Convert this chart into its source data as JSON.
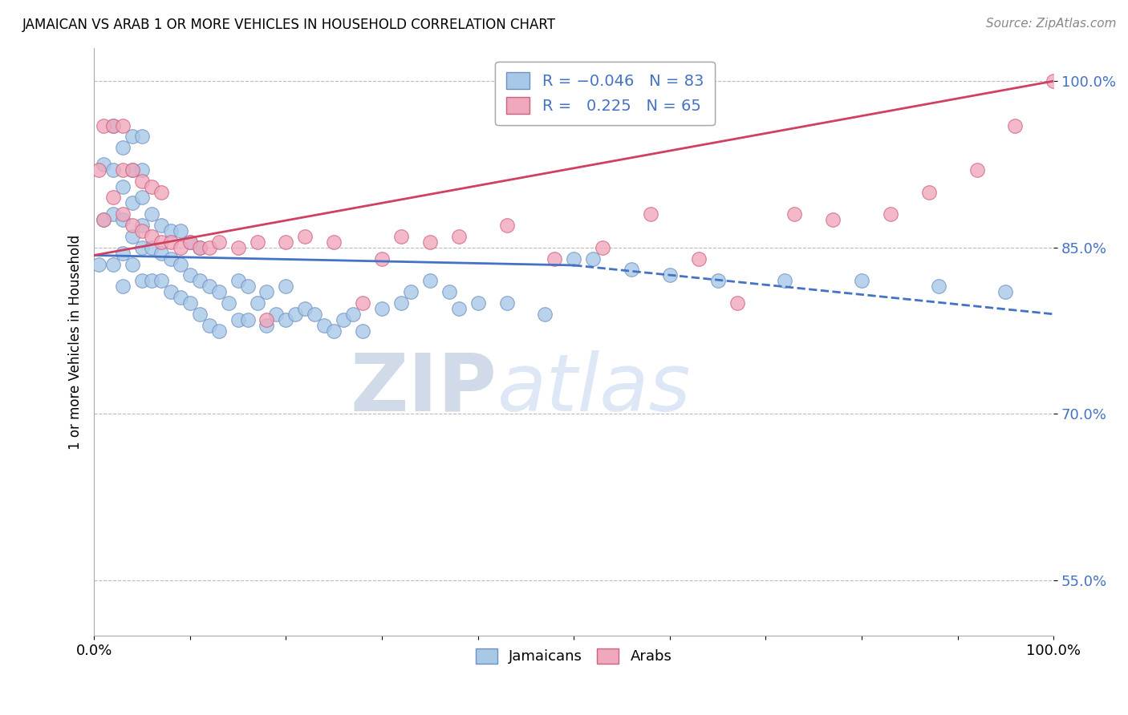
{
  "title": "JAMAICAN VS ARAB 1 OR MORE VEHICLES IN HOUSEHOLD CORRELATION CHART",
  "source": "Source: ZipAtlas.com",
  "ylabel": "1 or more Vehicles in Household",
  "xlim": [
    0.0,
    1.0
  ],
  "ylim": [
    0.5,
    1.03
  ],
  "yticks": [
    0.55,
    0.7,
    0.85,
    1.0
  ],
  "ytick_labels": [
    "55.0%",
    "70.0%",
    "85.0%",
    "100.0%"
  ],
  "xtick_labels": [
    "0.0%",
    "",
    "",
    "",
    "",
    "",
    "",
    "",
    "",
    "",
    "100.0%"
  ],
  "jamaican_color": "#A8C8E8",
  "arab_color": "#F0A8BC",
  "jamaican_color_edge": "#7090C0",
  "arab_color_edge": "#D06080",
  "trend_jamaican_color": "#4472C4",
  "trend_arab_color": "#D04060",
  "watermark_zip": "ZIP",
  "watermark_atlas": "atlas",
  "jamaican_x": [
    0.005,
    0.01,
    0.01,
    0.02,
    0.02,
    0.02,
    0.02,
    0.03,
    0.03,
    0.03,
    0.03,
    0.03,
    0.04,
    0.04,
    0.04,
    0.04,
    0.04,
    0.05,
    0.05,
    0.05,
    0.05,
    0.05,
    0.05,
    0.06,
    0.06,
    0.06,
    0.07,
    0.07,
    0.07,
    0.08,
    0.08,
    0.08,
    0.09,
    0.09,
    0.09,
    0.1,
    0.1,
    0.1,
    0.11,
    0.11,
    0.11,
    0.12,
    0.12,
    0.13,
    0.13,
    0.14,
    0.15,
    0.15,
    0.16,
    0.16,
    0.17,
    0.18,
    0.18,
    0.19,
    0.2,
    0.2,
    0.21,
    0.22,
    0.23,
    0.24,
    0.25,
    0.26,
    0.27,
    0.28,
    0.3,
    0.32,
    0.33,
    0.35,
    0.37,
    0.38,
    0.4,
    0.43,
    0.47,
    0.5,
    0.52,
    0.56,
    0.6,
    0.65,
    0.72,
    0.8,
    0.88,
    0.95
  ],
  "jamaican_y": [
    0.835,
    0.875,
    0.925,
    0.835,
    0.88,
    0.92,
    0.96,
    0.815,
    0.845,
    0.875,
    0.905,
    0.94,
    0.835,
    0.86,
    0.89,
    0.92,
    0.95,
    0.82,
    0.85,
    0.87,
    0.895,
    0.92,
    0.95,
    0.82,
    0.85,
    0.88,
    0.82,
    0.845,
    0.87,
    0.81,
    0.84,
    0.865,
    0.805,
    0.835,
    0.865,
    0.8,
    0.825,
    0.855,
    0.79,
    0.82,
    0.85,
    0.78,
    0.815,
    0.775,
    0.81,
    0.8,
    0.785,
    0.82,
    0.785,
    0.815,
    0.8,
    0.78,
    0.81,
    0.79,
    0.785,
    0.815,
    0.79,
    0.795,
    0.79,
    0.78,
    0.775,
    0.785,
    0.79,
    0.775,
    0.795,
    0.8,
    0.81,
    0.82,
    0.81,
    0.795,
    0.8,
    0.8,
    0.79,
    0.84,
    0.84,
    0.83,
    0.825,
    0.82,
    0.82,
    0.82,
    0.815,
    0.81
  ],
  "arab_x": [
    0.005,
    0.01,
    0.01,
    0.02,
    0.02,
    0.03,
    0.03,
    0.03,
    0.04,
    0.04,
    0.05,
    0.05,
    0.06,
    0.06,
    0.07,
    0.07,
    0.08,
    0.09,
    0.1,
    0.11,
    0.12,
    0.13,
    0.15,
    0.17,
    0.18,
    0.2,
    0.22,
    0.25,
    0.28,
    0.3,
    0.32,
    0.35,
    0.38,
    0.43,
    0.48,
    0.53,
    0.58,
    0.63,
    0.67,
    0.73,
    0.77,
    0.83,
    0.87,
    0.92,
    0.96,
    1.0
  ],
  "arab_y": [
    0.92,
    0.875,
    0.96,
    0.895,
    0.96,
    0.88,
    0.92,
    0.96,
    0.87,
    0.92,
    0.865,
    0.91,
    0.86,
    0.905,
    0.855,
    0.9,
    0.855,
    0.85,
    0.855,
    0.85,
    0.85,
    0.855,
    0.85,
    0.855,
    0.785,
    0.855,
    0.86,
    0.855,
    0.8,
    0.84,
    0.86,
    0.855,
    0.86,
    0.87,
    0.84,
    0.85,
    0.88,
    0.84,
    0.8,
    0.88,
    0.875,
    0.88,
    0.9,
    0.92,
    0.96,
    1.0
  ],
  "trend_jam_x0": 0.0,
  "trend_jam_y0": 0.843,
  "trend_jam_x1": 0.5,
  "trend_jam_y1": 0.834,
  "trend_jam_dash_x0": 0.5,
  "trend_jam_dash_y0": 0.834,
  "trend_jam_dash_x1": 1.0,
  "trend_jam_dash_y1": 0.79,
  "trend_arab_x0": 0.0,
  "trend_arab_y0": 0.843,
  "trend_arab_x1": 1.0,
  "trend_arab_y1": 1.0
}
